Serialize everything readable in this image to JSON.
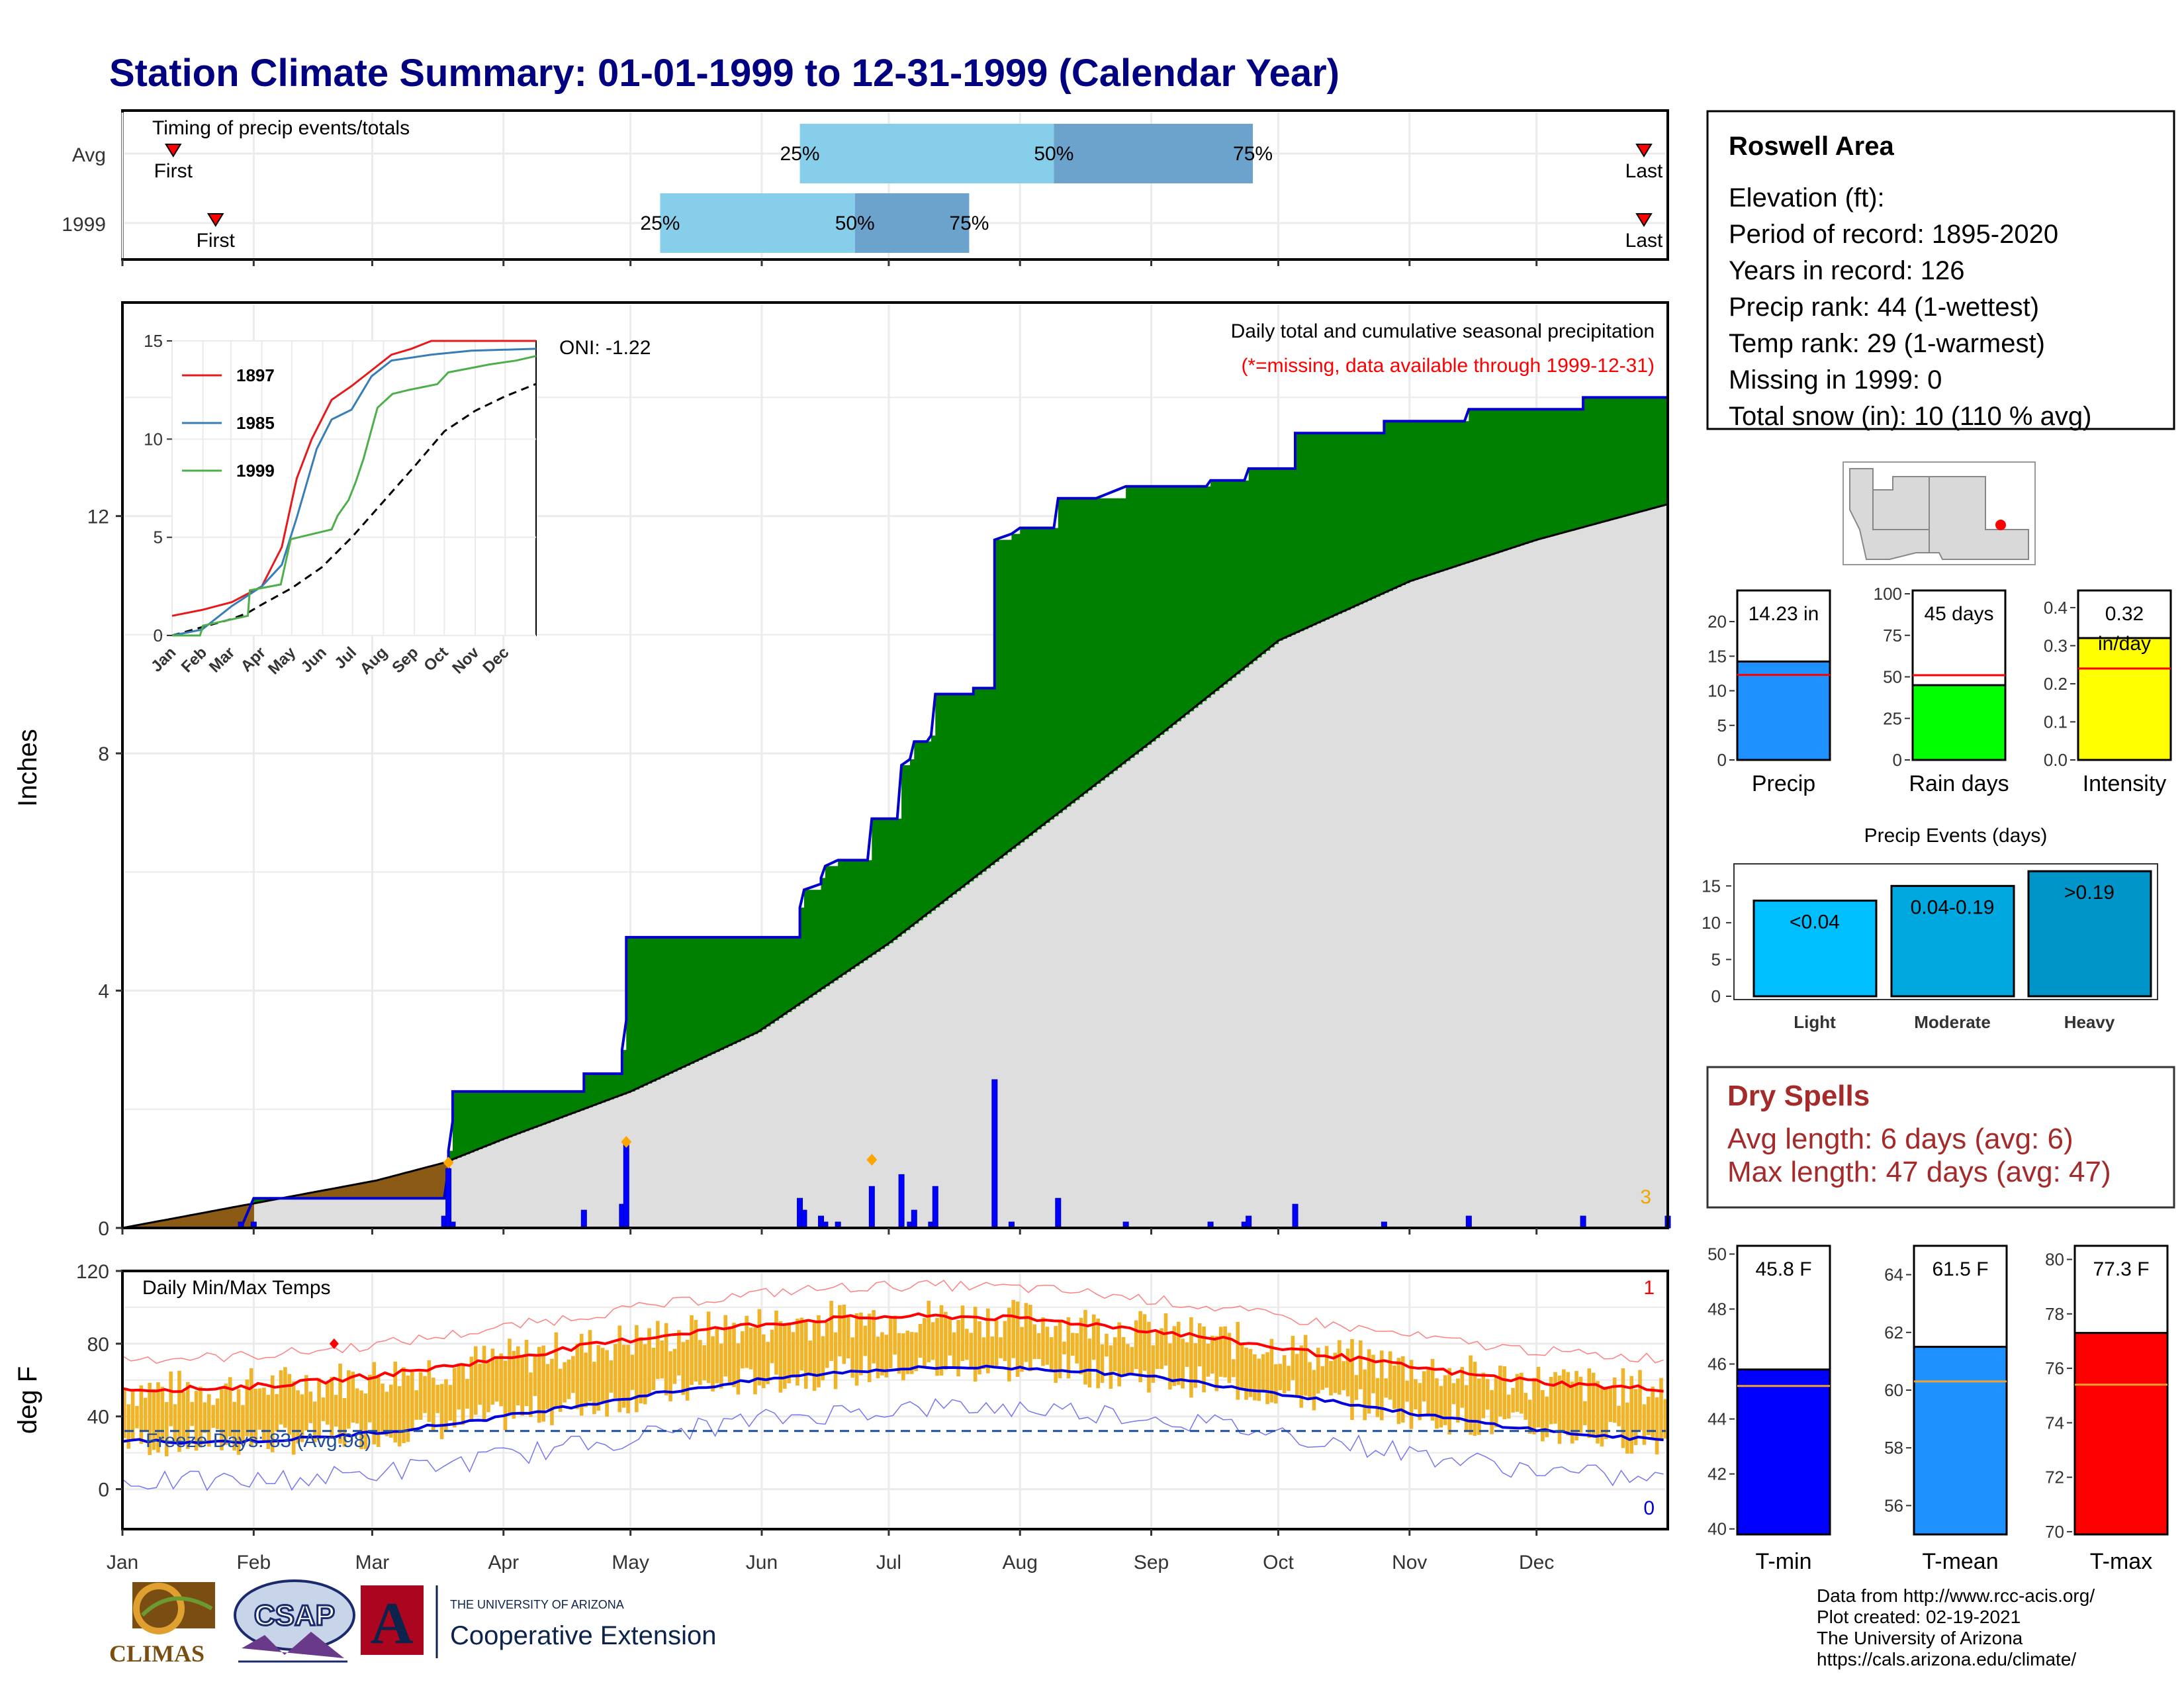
{
  "title": "Station Climate Summary: 01-01-1999 to 12-31-1999 (Calendar Year)",
  "months": [
    "Jan",
    "Feb",
    "Mar",
    "Apr",
    "May",
    "Jun",
    "Jul",
    "Aug",
    "Sep",
    "Oct",
    "Nov",
    "Dec"
  ],
  "timing": {
    "label": "Timing of precip events/totals",
    "rows": [
      "Avg",
      "1999"
    ],
    "first_label": "First",
    "last_label": "Last",
    "p25": "25%",
    "p50": "50%",
    "p75": "75%",
    "avg": {
      "first_day": 12,
      "p25_day": 160,
      "p50_day": 220,
      "p75_day": 267,
      "last_day": 372
    },
    "y1999": {
      "first_day": 22,
      "p25_day": 127,
      "p50_day": 173,
      "p75_day": 200,
      "last_day": 381
    }
  },
  "precip_panel": {
    "ylabel": "Inches",
    "note1": "Daily total and cumulative seasonal precipitation",
    "note2": "(*=missing, data available through 1999-12-31)",
    "oni": "ONI: -1.22",
    "corner_count": "3",
    "yticks": [
      0,
      4,
      8,
      12
    ],
    "ylim": [
      0,
      15.6
    ]
  },
  "inset": {
    "xticks": [
      "Jan",
      "Feb",
      "Mar",
      "Apr",
      "May",
      "Jun",
      "Jul",
      "Aug",
      "Sep",
      "Oct",
      "Nov",
      "Dec"
    ],
    "yticks": [
      0,
      5,
      10,
      15
    ],
    "legend": [
      "1897",
      "1985",
      "1999"
    ],
    "colors": [
      "#e41a1c",
      "#377eb8",
      "#4daf4a"
    ]
  },
  "temp_panel": {
    "ylabel": "deg F",
    "title": "Daily Min/Max Temps",
    "freeze": "Freeze Days: 83 (Avg:98)",
    "top_count": "1",
    "bottom_count": "0",
    "yticks": [
      0,
      40,
      80,
      120
    ]
  },
  "station": {
    "name": "Roswell Area",
    "lines": [
      "Elevation (ft):",
      "Period of record: 1895-2020",
      "Years in record: 126",
      "Precip rank: 44 (1-wettest)",
      "Temp rank: 29 (1-warmest)",
      "Missing in 1999: 0",
      "Total snow (in): 10 (110 % avg)"
    ]
  },
  "stat_bars": [
    {
      "label": "Precip",
      "value_text": "14.23 in",
      "value": 14.23,
      "avg": 12.3,
      "ymax": 24.5,
      "ticks": [
        0,
        5,
        10,
        15,
        20
      ],
      "color": "#1e90ff"
    },
    {
      "label": "Rain days",
      "value_text": "45 days",
      "value": 45,
      "avg": 51,
      "ymax": 102,
      "ticks": [
        0,
        25,
        50,
        75,
        100
      ],
      "color": "#00ff00"
    },
    {
      "label": "Intensity",
      "value_text": "0.32",
      "value_text2": "in/day",
      "value": 0.32,
      "avg": 0.24,
      "ymax": 0.445,
      "ticks": [
        "0.0",
        "0.1",
        "0.2",
        "0.3",
        "0.4"
      ],
      "color": "#ffff00"
    }
  ],
  "events": {
    "title": "Precip Events (days)",
    "categories": [
      "Light",
      "Moderate",
      "Heavy"
    ],
    "labels": [
      "<0.04",
      "0.04-0.19",
      ">0.19"
    ],
    "values": [
      13,
      15,
      17
    ],
    "colors": [
      "#00bfff",
      "#00a8e0",
      "#0095c8"
    ],
    "ticks": [
      0,
      5,
      10,
      15
    ]
  },
  "dry_spells": {
    "title": "Dry Spells",
    "avg": "Avg length: 6 days (avg: 6)",
    "max": "Max length: 47 days (avg: 47)"
  },
  "temp_bars": [
    {
      "label": "T-min",
      "value_text": "45.8 F",
      "value": 45.8,
      "avg": 45.2,
      "ymin": 39.8,
      "ymax": 50.3,
      "ticks": [
        40,
        42,
        44,
        46,
        48,
        50
      ],
      "color": "#0000ff"
    },
    {
      "label": "T-mean",
      "value_text": "61.5 F",
      "value": 61.5,
      "avg": 60.3,
      "ymin": 55,
      "ymax": 65,
      "ticks": [
        56,
        58,
        60,
        62,
        64
      ],
      "color": "#1e90ff"
    },
    {
      "label": "T-max",
      "value_text": "77.3 F",
      "value": 77.3,
      "avg": 75.4,
      "ymin": 69.9,
      "ymax": 80.5,
      "ticks": [
        70,
        72,
        74,
        76,
        78,
        80
      ],
      "color": "#ff0000"
    }
  ],
  "credits": [
    "Data from http://www.rcc-acis.org/",
    "Plot created: 02-19-2021",
    "The University of Arizona",
    "https://cals.arizona.edu/climate/"
  ],
  "logos": {
    "climas": "CLIMAS",
    "csap": "CSAP",
    "ua_small": "THE UNIVERSITY OF ARIZONA",
    "ua_big": "Cooperative Extension",
    "ua_letter": "A"
  },
  "chart_data": [
    {
      "type": "area",
      "title": "Daily total and cumulative seasonal precipitation",
      "ylabel": "Inches",
      "ylim": [
        0,
        15.6
      ],
      "cumulative_1999": [
        [
          0,
          0.0
        ],
        [
          28,
          0.0
        ],
        [
          31,
          0.5
        ],
        [
          76,
          0.5
        ],
        [
          77,
          1.0
        ],
        [
          77,
          1.3
        ],
        [
          78,
          1.8
        ],
        [
          78,
          2.3
        ],
        [
          109,
          2.3
        ],
        [
          109,
          2.6
        ],
        [
          118,
          2.6
        ],
        [
          118,
          3.0
        ],
        [
          119,
          3.5
        ],
        [
          119,
          4.9
        ],
        [
          160,
          4.9
        ],
        [
          160,
          5.4
        ],
        [
          161,
          5.7
        ],
        [
          165,
          5.8
        ],
        [
          165,
          5.9
        ],
        [
          166,
          6.1
        ],
        [
          169,
          6.2
        ],
        [
          176,
          6.2
        ],
        [
          177,
          6.9
        ],
        [
          183,
          6.9
        ],
        [
          184,
          7.8
        ],
        [
          186,
          7.9
        ],
        [
          187,
          8.2
        ],
        [
          190,
          8.2
        ],
        [
          191,
          8.3
        ],
        [
          192,
          9.0
        ],
        [
          201,
          9.0
        ],
        [
          201,
          9.1
        ],
        [
          206,
          9.1
        ],
        [
          206,
          11.6
        ],
        [
          210,
          11.7
        ],
        [
          212,
          11.8
        ],
        [
          220,
          11.8
        ],
        [
          221,
          12.3
        ],
        [
          230,
          12.3
        ],
        [
          237,
          12.5
        ],
        [
          256,
          12.5
        ],
        [
          257,
          12.6
        ],
        [
          265,
          12.6
        ],
        [
          266,
          12.8
        ],
        [
          277,
          12.8
        ],
        [
          277,
          13.4
        ],
        [
          298,
          13.4
        ],
        [
          298,
          13.6
        ],
        [
          317,
          13.6
        ],
        [
          318,
          13.8
        ],
        [
          345,
          13.8
        ],
        [
          345,
          14.0
        ],
        [
          365,
          14.0
        ],
        [
          365,
          14.23
        ]
      ],
      "cumulative_average": [
        [
          0,
          0
        ],
        [
          30,
          0.4
        ],
        [
          60,
          0.8
        ],
        [
          76,
          1.1
        ],
        [
          90,
          1.5
        ],
        [
          120,
          2.3
        ],
        [
          150,
          3.3
        ],
        [
          181,
          4.8
        ],
        [
          212,
          6.5
        ],
        [
          243,
          8.2
        ],
        [
          273,
          9.9
        ],
        [
          304,
          10.9
        ],
        [
          334,
          11.6
        ],
        [
          365,
          12.2
        ]
      ],
      "daily_1999": [
        [
          28,
          0.1
        ],
        [
          31,
          0.1
        ],
        [
          76,
          0.2
        ],
        [
          77,
          1.0
        ],
        [
          78,
          0.1
        ],
        [
          109,
          0.3
        ],
        [
          118,
          0.4
        ],
        [
          119,
          1.4
        ],
        [
          160,
          0.5
        ],
        [
          161,
          0.3
        ],
        [
          165,
          0.2
        ],
        [
          166,
          0.1
        ],
        [
          169,
          0.1
        ],
        [
          177,
          0.7
        ],
        [
          184,
          0.9
        ],
        [
          186,
          0.1
        ],
        [
          187,
          0.3
        ],
        [
          191,
          0.1
        ],
        [
          192,
          0.7
        ],
        [
          206,
          2.5
        ],
        [
          210,
          0.1
        ],
        [
          221,
          0.5
        ],
        [
          237,
          0.1
        ],
        [
          257,
          0.1
        ],
        [
          265,
          0.1
        ],
        [
          266,
          0.2
        ],
        [
          277,
          0.4
        ],
        [
          298,
          0.1
        ],
        [
          318,
          0.2
        ],
        [
          345,
          0.2
        ],
        [
          365,
          0.2
        ]
      ]
    },
    {
      "type": "line",
      "title": "Daily Min/Max Temps",
      "ylabel": "deg F",
      "ylim": [
        -22,
        120
      ],
      "avg_max_seasonal": {
        "min": 55,
        "max": 95,
        "peak_day": 190
      },
      "avg_min_seasonal": {
        "min": 26,
        "max": 67,
        "peak_day": 200
      },
      "freeze_line": 32
    },
    {
      "type": "line",
      "title": "inset cumulative precipitation",
      "legend": [
        "1897",
        "1985",
        "1999"
      ],
      "ylim": [
        0,
        15
      ],
      "series": [
        {
          "name": "1897",
          "points": [
            [
              0,
              1
            ],
            [
              30,
              1.3
            ],
            [
              60,
              1.7
            ],
            [
              90,
              2.5
            ],
            [
              110,
              4.5
            ],
            [
              125,
              8.0
            ],
            [
              140,
              10.0
            ],
            [
              160,
              12.0
            ],
            [
              180,
              12.7
            ],
            [
              200,
              13.5
            ],
            [
              220,
              14.3
            ],
            [
              240,
              14.6
            ],
            [
              260,
              15.0
            ],
            [
              300,
              15.0
            ],
            [
              365,
              15.0
            ]
          ]
        },
        {
          "name": "1985",
          "points": [
            [
              0,
              0
            ],
            [
              30,
              0.3
            ],
            [
              60,
              1.5
            ],
            [
              90,
              2.5
            ],
            [
              110,
              3.6
            ],
            [
              125,
              6.0
            ],
            [
              145,
              9.5
            ],
            [
              160,
              11.0
            ],
            [
              180,
              11.5
            ],
            [
              200,
              13.2
            ],
            [
              220,
              14.0
            ],
            [
              260,
              14.3
            ],
            [
              300,
              14.5
            ],
            [
              365,
              14.6
            ]
          ]
        },
        {
          "name": "1999",
          "points": [
            [
              0,
              0
            ],
            [
              28,
              0
            ],
            [
              31,
              0.5
            ],
            [
              76,
              1.0
            ],
            [
              78,
              2.3
            ],
            [
              109,
              2.6
            ],
            [
              119,
              4.9
            ],
            [
              160,
              5.4
            ],
            [
              166,
              6.1
            ],
            [
              177,
              6.9
            ],
            [
              184,
              7.8
            ],
            [
              192,
              9.0
            ],
            [
              206,
              11.6
            ],
            [
              221,
              12.3
            ],
            [
              237,
              12.5
            ],
            [
              266,
              12.8
            ],
            [
              277,
              13.4
            ],
            [
              298,
              13.6
            ],
            [
              318,
              13.8
            ],
            [
              345,
              14.0
            ],
            [
              365,
              14.23
            ]
          ]
        }
      ]
    }
  ]
}
